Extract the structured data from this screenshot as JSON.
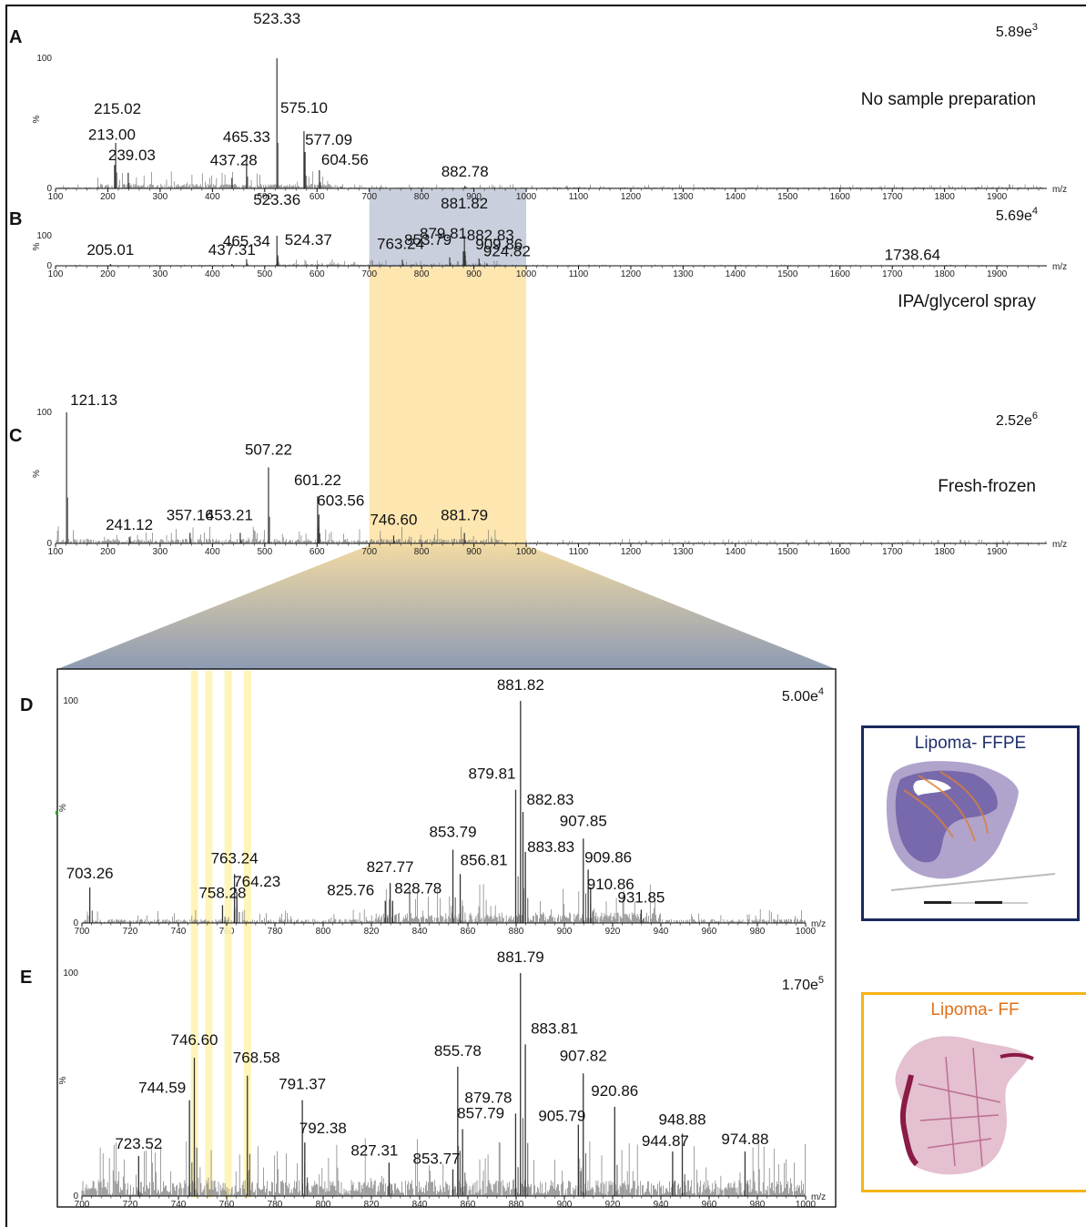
{
  "chart_data": [
    {
      "panel": "A",
      "type": "line",
      "xlabel": "m/z",
      "ylabel": "%",
      "xlim": [
        100,
        2000
      ],
      "ylim": [
        0,
        100
      ],
      "yticks": [
        0,
        100
      ],
      "xticks": [
        100,
        200,
        300,
        400,
        500,
        600,
        700,
        800,
        900,
        1000,
        1100,
        1200,
        1300,
        1400,
        1500,
        1600,
        1700,
        1800,
        1900
      ],
      "intensity": "5.89e",
      "intensity_exp": "3",
      "condition": "No sample preparation",
      "peaks": [
        {
          "mz": 213.0,
          "rel": 18,
          "label": "213.00"
        },
        {
          "mz": 215.02,
          "rel": 35,
          "label": "215.02"
        },
        {
          "mz": 239.03,
          "rel": 12,
          "label": "239.03"
        },
        {
          "mz": 437.28,
          "rel": 8,
          "label": "437.28"
        },
        {
          "mz": 465.33,
          "rel": 26,
          "label": "465.33"
        },
        {
          "mz": 523.33,
          "rel": 100,
          "label": "523.33"
        },
        {
          "mz": 575.1,
          "rel": 44,
          "label": "575.10"
        },
        {
          "mz": 577.09,
          "rel": 28,
          "label": "577.09"
        },
        {
          "mz": 604.56,
          "rel": 14,
          "label": "604.56"
        },
        {
          "mz": 882.78,
          "rel": 2,
          "label": "882.78"
        }
      ]
    },
    {
      "panel": "B",
      "type": "line",
      "xlabel": "m/z",
      "ylabel": "%",
      "xlim": [
        100,
        2000
      ],
      "ylim": [
        0,
        100
      ],
      "yticks": [
        0,
        100
      ],
      "xticks": [
        100,
        200,
        300,
        400,
        500,
        600,
        700,
        800,
        900,
        1000,
        1100,
        1200,
        1300,
        1400,
        1500,
        1600,
        1700,
        1800,
        1900
      ],
      "intensity": "5.69e",
      "intensity_exp": "4",
      "condition": "IPA/glycerol spray",
      "peaks": [
        {
          "mz": 205.01,
          "rel": 6,
          "label": "205.01"
        },
        {
          "mz": 437.31,
          "rel": 6,
          "label": "437.31"
        },
        {
          "mz": 465.34,
          "rel": 22,
          "label": "465.34"
        },
        {
          "mz": 523.36,
          "rel": 100,
          "label": "523.36"
        },
        {
          "mz": 524.37,
          "rel": 28,
          "label": "524.37"
        },
        {
          "mz": 763.24,
          "rel": 20,
          "label": "763.24"
        },
        {
          "mz": 853.79,
          "rel": 28,
          "label": "853.79"
        },
        {
          "mz": 879.81,
          "rel": 48,
          "label": "879.81"
        },
        {
          "mz": 881.82,
          "rel": 100,
          "label": "881.82"
        },
        {
          "mz": 882.83,
          "rel": 48,
          "label": "882.83"
        },
        {
          "mz": 909.86,
          "rel": 24,
          "label": "909.86"
        },
        {
          "mz": 924.82,
          "rel": 8,
          "label": "924.82"
        },
        {
          "mz": 1738.64,
          "rel": 2,
          "label": "1738.64"
        }
      ]
    },
    {
      "panel": "C",
      "type": "line",
      "xlabel": "m/z",
      "ylabel": "%",
      "xlim": [
        100,
        2000
      ],
      "ylim": [
        0,
        100
      ],
      "yticks": [
        0,
        100
      ],
      "xticks": [
        100,
        200,
        300,
        400,
        500,
        600,
        700,
        800,
        900,
        1000,
        1100,
        1200,
        1300,
        1400,
        1500,
        1600,
        1700,
        1800,
        1900
      ],
      "intensity": "2.52e",
      "intensity_exp": "6",
      "condition": "Fresh-frozen",
      "peaks": [
        {
          "mz": 121.13,
          "rel": 100,
          "label": "121.13"
        },
        {
          "mz": 241.12,
          "rel": 5,
          "label": "241.12"
        },
        {
          "mz": 357.16,
          "rel": 8,
          "label": "357.16"
        },
        {
          "mz": 453.21,
          "rel": 8,
          "label": "453.21"
        },
        {
          "mz": 507.22,
          "rel": 58,
          "label": "507.22"
        },
        {
          "mz": 601.22,
          "rel": 36,
          "label": "601.22"
        },
        {
          "mz": 603.56,
          "rel": 22,
          "label": "603.56"
        },
        {
          "mz": 746.6,
          "rel": 6,
          "label": "746.60"
        },
        {
          "mz": 881.79,
          "rel": 8,
          "label": "881.79"
        }
      ]
    },
    {
      "panel": "D",
      "type": "line",
      "xlabel": "m/z",
      "ylabel": "%",
      "xlim": [
        700,
        1000
      ],
      "ylim": [
        0,
        100
      ],
      "yticks": [
        0,
        100
      ],
      "xticks": [
        700,
        720,
        740,
        760,
        780,
        800,
        820,
        840,
        860,
        880,
        900,
        920,
        940,
        960,
        980,
        1000
      ],
      "intensity": "5.00e",
      "intensity_exp": "4",
      "highlight_mz": [
        746.6,
        752.6,
        760.6,
        768.6
      ],
      "peaks": [
        {
          "mz": 703.26,
          "rel": 16,
          "label": "703.26"
        },
        {
          "mz": 758.28,
          "rel": 8,
          "label": "758.28"
        },
        {
          "mz": 763.24,
          "rel": 22,
          "label": "763.24"
        },
        {
          "mz": 764.23,
          "rel": 14,
          "label": "764.23"
        },
        {
          "mz": 825.76,
          "rel": 10,
          "label": "825.76"
        },
        {
          "mz": 827.77,
          "rel": 18,
          "label": "827.77"
        },
        {
          "mz": 828.78,
          "rel": 10,
          "label": "828.78"
        },
        {
          "mz": 853.79,
          "rel": 33,
          "label": "853.79"
        },
        {
          "mz": 856.81,
          "rel": 22,
          "label": "856.81"
        },
        {
          "mz": 879.81,
          "rel": 60,
          "label": "879.81"
        },
        {
          "mz": 881.82,
          "rel": 100,
          "label": "881.82"
        },
        {
          "mz": 882.83,
          "rel": 50,
          "label": "882.83"
        },
        {
          "mz": 883.83,
          "rel": 32,
          "label": "883.83"
        },
        {
          "mz": 907.85,
          "rel": 38,
          "label": "907.85"
        },
        {
          "mz": 909.86,
          "rel": 24,
          "label": "909.86"
        },
        {
          "mz": 910.86,
          "rel": 16,
          "label": "910.86"
        },
        {
          "mz": 931.85,
          "rel": 6,
          "label": "931.85"
        }
      ]
    },
    {
      "panel": "E",
      "type": "line",
      "xlabel": "m/z",
      "ylabel": "%",
      "xlim": [
        700,
        1000
      ],
      "ylim": [
        0,
        100
      ],
      "yticks": [
        0,
        100
      ],
      "xticks": [
        700,
        720,
        740,
        760,
        780,
        800,
        820,
        840,
        860,
        880,
        900,
        920,
        940,
        960,
        980,
        1000
      ],
      "intensity": "1.70e",
      "intensity_exp": "5",
      "highlight_mz": [
        746.6,
        752.6,
        760.6,
        768.6
      ],
      "peaks": [
        {
          "mz": 723.52,
          "rel": 18,
          "label": "723.52"
        },
        {
          "mz": 744.59,
          "rel": 43,
          "label": "744.59"
        },
        {
          "mz": 746.6,
          "rel": 62,
          "label": "746.60"
        },
        {
          "mz": 768.58,
          "rel": 54,
          "label": "768.58"
        },
        {
          "mz": 791.37,
          "rel": 43,
          "label": "791.37"
        },
        {
          "mz": 792.38,
          "rel": 24,
          "label": "792.38"
        },
        {
          "mz": 827.31,
          "rel": 15,
          "label": "827.31"
        },
        {
          "mz": 853.77,
          "rel": 12,
          "label": "853.77"
        },
        {
          "mz": 855.78,
          "rel": 58,
          "label": "855.78"
        },
        {
          "mz": 857.79,
          "rel": 30,
          "label": "857.79"
        },
        {
          "mz": 879.78,
          "rel": 37,
          "label": "879.78"
        },
        {
          "mz": 881.79,
          "rel": 100,
          "label": "881.79"
        },
        {
          "mz": 883.81,
          "rel": 68,
          "label": "883.81"
        },
        {
          "mz": 905.79,
          "rel": 32,
          "label": "905.79"
        },
        {
          "mz": 907.82,
          "rel": 55,
          "label": "907.82"
        },
        {
          "mz": 920.86,
          "rel": 40,
          "label": "920.86"
        },
        {
          "mz": 944.87,
          "rel": 20,
          "label": "944.87"
        },
        {
          "mz": 948.88,
          "rel": 28,
          "label": "948.88"
        },
        {
          "mz": 974.88,
          "rel": 20,
          "label": "974.88"
        }
      ]
    }
  ],
  "highlight": {
    "mz_range": [
      700,
      1000
    ]
  },
  "tissue_images": [
    {
      "label": "Lipoma- FFPE",
      "color": "#1f2f6b",
      "border": "#1a2a5e"
    },
    {
      "label": "Lipoma- FF",
      "color": "#e0701a",
      "border": "#f5b418"
    }
  ],
  "colors": {
    "spectrum": "#444444",
    "blue_band": "#c9cfdd",
    "yellow_band": "#fde6b0",
    "yellow_line": "#fff4a0"
  }
}
